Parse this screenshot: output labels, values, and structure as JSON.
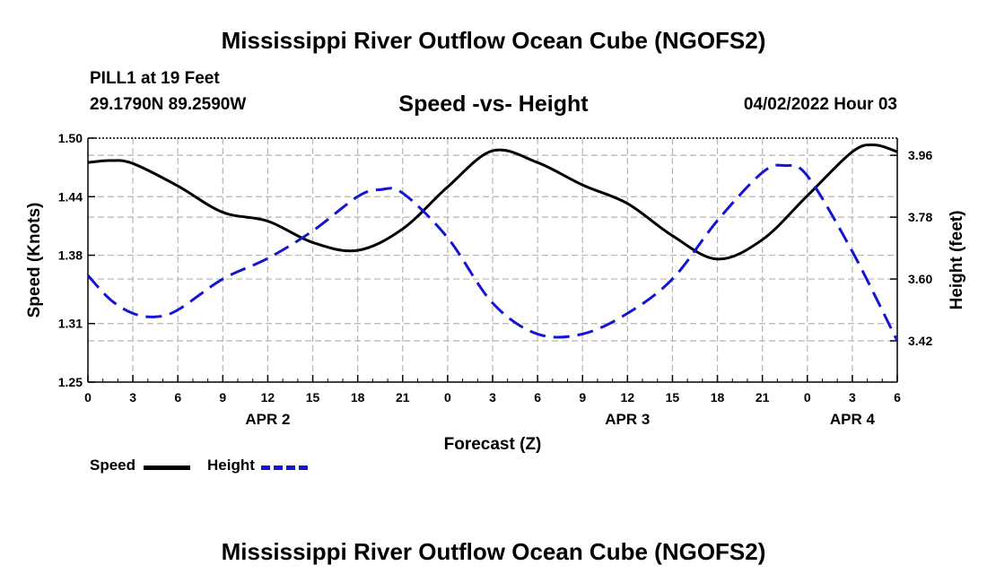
{
  "header": {
    "title": "Mississippi River Outflow Ocean Cube (NGOFS2)",
    "station": "PILL1 at 19 Feet",
    "coords": "29.1790N  89.2590W",
    "subtitle": "Speed -vs- Height",
    "datetime": "04/02/2022 Hour 03"
  },
  "footer": {
    "title": "Mississippi River Outflow Ocean Cube (NGOFS2)"
  },
  "legend": {
    "speed": "Speed",
    "height": "Height"
  },
  "colors": {
    "speed": "#000000",
    "height": "#1414d2",
    "grid": "#b4b4b4"
  },
  "chart_data": {
    "type": "line",
    "title": "Speed -vs- Height",
    "xlabel": "Forecast (Z)",
    "ylabel_left": "Speed (Knots)",
    "ylabel_right": "Height (feet)",
    "x_unit": "hours from APR 2 00Z",
    "xlim": [
      0,
      54
    ],
    "x_ticks": [
      0,
      3,
      6,
      9,
      12,
      15,
      18,
      21,
      24,
      27,
      30,
      33,
      36,
      39,
      42,
      45,
      48,
      51,
      54
    ],
    "x_tick_labels": [
      "0",
      "3",
      "6",
      "9",
      "12",
      "15",
      "18",
      "21",
      "0",
      "3",
      "6",
      "9",
      "12",
      "15",
      "18",
      "21",
      "0",
      "3",
      "6"
    ],
    "day_labels": [
      {
        "x": 12,
        "label": "APR 2"
      },
      {
        "x": 36,
        "label": "APR 3"
      },
      {
        "x": 51,
        "label": "APR 4"
      }
    ],
    "ylim_left": [
      1.25,
      1.5
    ],
    "y_ticks_left": [
      1.25,
      1.31,
      1.38,
      1.44,
      1.5
    ],
    "y_tick_labels_left": [
      "1.25",
      "1.31",
      "1.38",
      "1.44",
      "1.50"
    ],
    "ylim_right": [
      3.3,
      4.01
    ],
    "y_ticks_right": [
      3.42,
      3.6,
      3.78,
      3.96
    ],
    "y_tick_labels_right": [
      "3.42",
      "3.60",
      "3.78",
      "3.96"
    ],
    "grid": true,
    "series": [
      {
        "name": "Speed",
        "axis": "left",
        "style": "solid",
        "x": [
          0,
          1.5,
          3,
          6,
          9,
          12,
          15,
          18,
          21,
          24,
          27,
          30,
          33,
          36,
          39,
          42,
          45,
          48,
          51,
          52.5,
          54
        ],
        "values": [
          1.475,
          1.477,
          1.474,
          1.451,
          1.424,
          1.415,
          1.393,
          1.385,
          1.407,
          1.45,
          1.487,
          1.475,
          1.452,
          1.433,
          1.4,
          1.376,
          1.396,
          1.441,
          1.486,
          1.493,
          1.486
        ]
      },
      {
        "name": "Height",
        "axis": "right",
        "style": "dashed",
        "x": [
          0,
          1.5,
          3,
          4.5,
          6,
          9,
          12,
          15,
          18,
          19.5,
          21,
          24,
          27,
          30,
          33,
          36,
          39,
          42,
          45,
          46.5,
          48,
          51,
          54
        ],
        "values": [
          3.61,
          3.54,
          3.5,
          3.49,
          3.51,
          3.6,
          3.66,
          3.74,
          3.84,
          3.86,
          3.85,
          3.72,
          3.53,
          3.44,
          3.44,
          3.5,
          3.6,
          3.77,
          3.91,
          3.93,
          3.9,
          3.68,
          3.42
        ]
      }
    ]
  }
}
